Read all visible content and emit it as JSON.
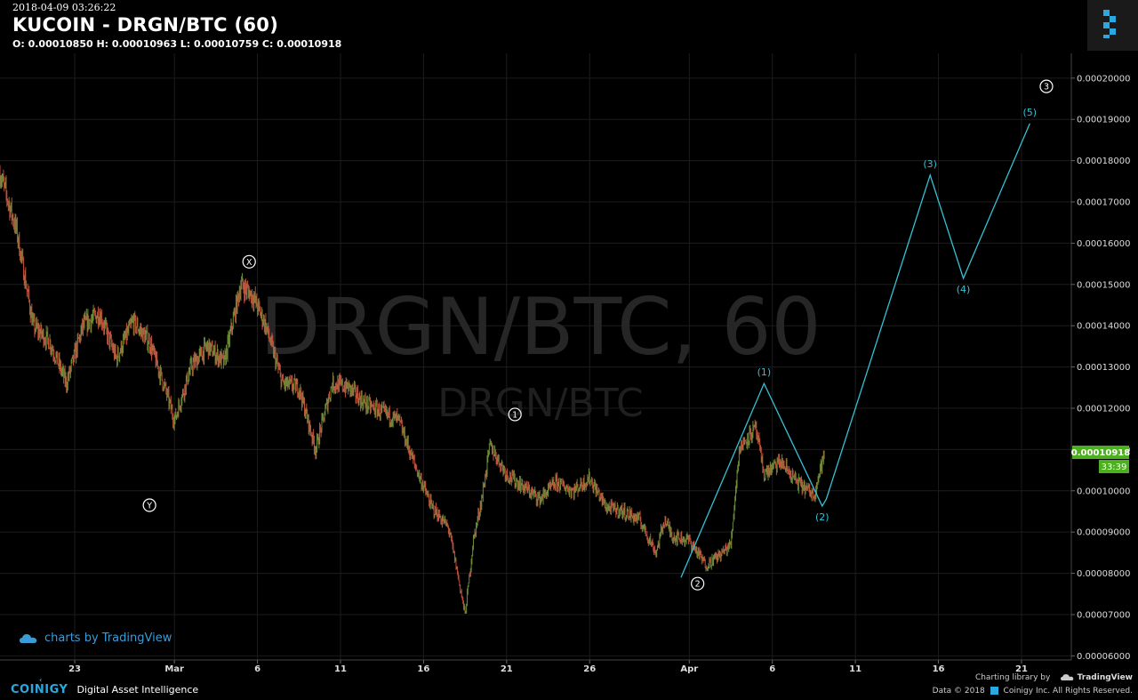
{
  "header": {
    "timestamp": "2018-04-09 03:26:22",
    "title": "KUCOIN - DRGN/BTC (60)",
    "ohlc": "O: 0.00010850 H: 0.00010963 L: 0.00010759 C: 0.00010918"
  },
  "watermark": {
    "big": "DRGN/BTC, 60",
    "small": "DRGN/BTC"
  },
  "price_label": {
    "value": "0.00010918",
    "countdown": "33:39"
  },
  "branding": {
    "tradingview_badge": "charts by TradingView",
    "coinigy": "COINIGY",
    "tagline": "Digital Asset Intelligence",
    "charting_library": "Charting library by",
    "tradingview": "TradingView",
    "copyright": "Data © 2018",
    "copyright_rest": "Coinigy Inc. All Rights Reserved."
  },
  "colors": {
    "background": "#000000",
    "up": "#6e8f3a",
    "down": "#c0503a",
    "wave": "#35c1d6",
    "price_tag": "#4caf1f",
    "grid": "#1c1c1c"
  },
  "chart_data": {
    "type": "candlestick",
    "symbol": "DRGN/BTC",
    "exchange": "KUCOIN",
    "interval": "60",
    "ylim": [
      5.9e-05,
      0.000206
    ],
    "y_ticks": [
      "0.00020000",
      "0.00019000",
      "0.00018000",
      "0.00017000",
      "0.00016000",
      "0.00015000",
      "0.00014000",
      "0.00013000",
      "0.00012000",
      "0.00011000",
      "0.00010000",
      "0.00009000",
      "0.00008000",
      "0.00007000",
      "0.00006000"
    ],
    "x_range": [
      "2018-02-18T12:00",
      "2018-04-24T00:00"
    ],
    "x_ticks": [
      {
        "label": "23",
        "date": "2018-02-23"
      },
      {
        "label": "Mar",
        "date": "2018-03-01"
      },
      {
        "label": "6",
        "date": "2018-03-06"
      },
      {
        "label": "11",
        "date": "2018-03-11"
      },
      {
        "label": "16",
        "date": "2018-03-16"
      },
      {
        "label": "21",
        "date": "2018-03-21"
      },
      {
        "label": "26",
        "date": "2018-03-26"
      },
      {
        "label": "Apr",
        "date": "2018-04-01"
      },
      {
        "label": "6",
        "date": "2018-04-06"
      },
      {
        "label": "11",
        "date": "2018-04-11"
      },
      {
        "label": "16",
        "date": "2018-04-16"
      },
      {
        "label": "21",
        "date": "2018-04-21"
      }
    ],
    "price_path": [
      [
        "2018-02-18T12:00",
        0.000177
      ],
      [
        "2018-02-19T12:00",
        0.000163
      ],
      [
        "2018-02-20T12:00",
        0.00014
      ],
      [
        "2018-02-21T12:00",
        0.000136
      ],
      [
        "2018-02-22T12:00",
        0.000126
      ],
      [
        "2018-02-23T12:00",
        0.00014
      ],
      [
        "2018-02-24T12:00",
        0.000143
      ],
      [
        "2018-02-25T12:00",
        0.000132
      ],
      [
        "2018-02-26T12:00",
        0.000141
      ],
      [
        "2018-02-27T12:00",
        0.000136
      ],
      [
        "2018-02-28T12:00",
        0.000124
      ],
      [
        "2018-03-01T00:00",
        0.000117
      ],
      [
        "2018-03-02T00:00",
        0.00013
      ],
      [
        "2018-03-03T00:00",
        0.000135
      ],
      [
        "2018-03-04T00:00",
        0.000131
      ],
      [
        "2018-03-05T00:00",
        0.00015
      ],
      [
        "2018-03-05T18:00",
        0.000147
      ],
      [
        "2018-03-06T12:00",
        0.00014
      ],
      [
        "2018-03-07T12:00",
        0.000126
      ],
      [
        "2018-03-08T12:00",
        0.000125
      ],
      [
        "2018-03-09T12:00",
        0.00011
      ],
      [
        "2018-03-10T12:00",
        0.000126
      ],
      [
        "2018-03-11T12:00",
        0.000125
      ],
      [
        "2018-03-12T12:00",
        0.000121
      ],
      [
        "2018-03-13T12:00",
        0.000119
      ],
      [
        "2018-03-14T12:00",
        0.000117
      ],
      [
        "2018-03-15T12:00",
        0.000106
      ],
      [
        "2018-03-16T12:00",
        9.6e-05
      ],
      [
        "2018-03-17T12:00",
        9.1e-05
      ],
      [
        "2018-03-18T00:00",
        8.1e-05
      ],
      [
        "2018-03-18T12:00",
        7e-05
      ],
      [
        "2018-03-19T00:00",
        8.8e-05
      ],
      [
        "2018-03-19T12:00",
        9.8e-05
      ],
      [
        "2018-03-20T00:00",
        0.000111
      ],
      [
        "2018-03-21T00:00",
        0.000104
      ],
      [
        "2018-03-22T00:00",
        0.000101
      ],
      [
        "2018-03-23T00:00",
        9.8e-05
      ],
      [
        "2018-03-24T00:00",
        0.000102
      ],
      [
        "2018-03-25T00:00",
        0.0001
      ],
      [
        "2018-03-26T00:00",
        0.000103
      ],
      [
        "2018-03-27T00:00",
        9.6e-05
      ],
      [
        "2018-03-28T00:00",
        9.5e-05
      ],
      [
        "2018-03-29T00:00",
        9.3e-05
      ],
      [
        "2018-03-30T00:00",
        8.5e-05
      ],
      [
        "2018-03-30T12:00",
        9.3e-05
      ],
      [
        "2018-03-31T00:00",
        8.9e-05
      ],
      [
        "2018-04-01T00:00",
        8.8e-05
      ],
      [
        "2018-04-02T00:00",
        8.2e-05
      ],
      [
        "2018-04-03T00:00",
        8.5e-05
      ],
      [
        "2018-04-03T12:00",
        8.7e-05
      ],
      [
        "2018-04-04T00:00",
        0.00011
      ],
      [
        "2018-04-04T12:00",
        0.000113
      ],
      [
        "2018-04-05T00:00",
        0.000115
      ],
      [
        "2018-04-05T12:00",
        0.000104
      ],
      [
        "2018-04-06T12:00",
        0.000107
      ],
      [
        "2018-04-07T12:00",
        0.000102
      ],
      [
        "2018-04-08T12:00",
        9.9e-05
      ],
      [
        "2018-04-09T03:00",
        0.000109
      ]
    ],
    "current_price": 0.00010918,
    "series": [
      {
        "name": "",
        "type": "line",
        "points": [
          {
            "label": "",
            "x": "2018-03-31T12:00",
            "y": 7.9e-05
          },
          {
            "label": "(1)",
            "x": "2018-04-05T12:00",
            "y": 0.000126
          },
          {
            "label": "(2)",
            "x": "2018-04-09T00:00",
            "y": 9.63e-05
          },
          {
            "label": "",
            "x": "2018-04-09T06:00",
            "y": 9.8e-05
          },
          {
            "label": "(3)",
            "x": "2018-04-15T12:00",
            "y": 0.0001765
          },
          {
            "label": "(4)",
            "x": "2018-04-17T12:00",
            "y": 0.0001515
          },
          {
            "label": "(5)",
            "x": "2018-04-21T12:00",
            "y": 0.000189
          }
        ]
      }
    ],
    "annotations": [
      {
        "label": "X",
        "x": "2018-03-05T12:00",
        "y": 0.0001555
      },
      {
        "label": "Y",
        "x": "2018-02-27T12:00",
        "y": 9.65e-05
      },
      {
        "label": "1",
        "x": "2018-03-21T12:00",
        "y": 0.0001185
      },
      {
        "label": "2",
        "x": "2018-04-01T12:00",
        "y": 7.75e-05
      },
      {
        "label": "3",
        "x": "2018-04-22T12:00",
        "y": 0.000198
      }
    ]
  }
}
